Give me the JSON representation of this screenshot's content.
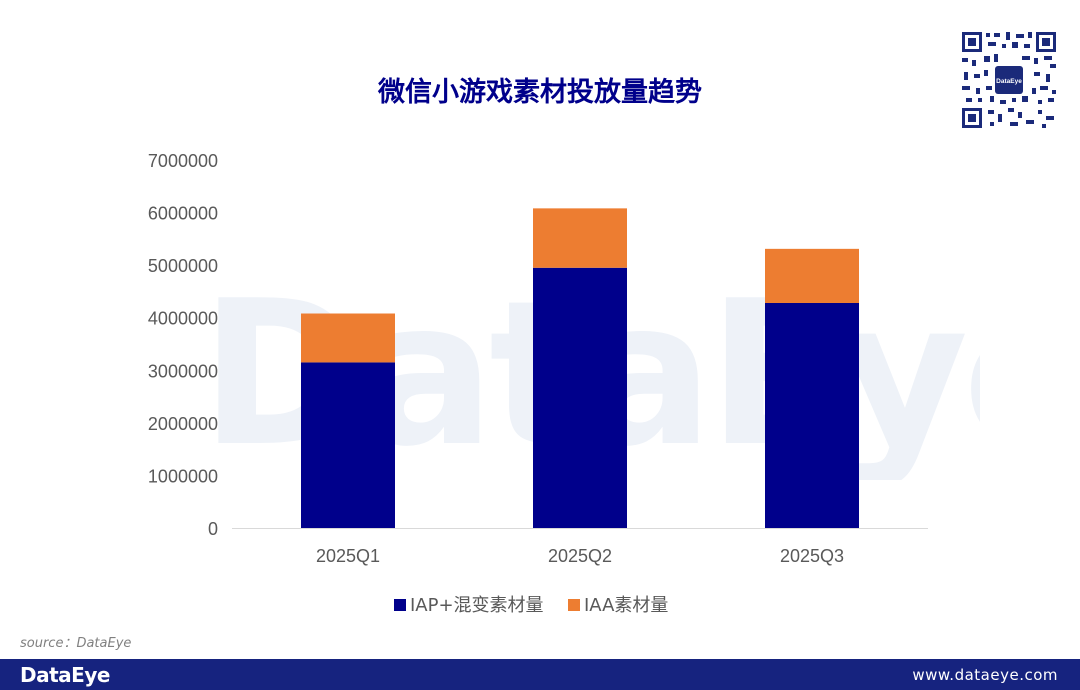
{
  "brand": {
    "primary": "#00008b",
    "accent": "#ed7d31",
    "footer_bg": "#16237f"
  },
  "header": {
    "title": "微信小游戏素材投放量趋势",
    "qr_badge": "DataEye"
  },
  "watermark": {
    "text": "DataEye"
  },
  "chart_data": {
    "type": "bar",
    "stacked": true,
    "title": "微信小游戏素材投放量趋势",
    "categories": [
      "2025Q1",
      "2025Q2",
      "2025Q3"
    ],
    "series": [
      {
        "name": "IAP+混变素材量",
        "color": "#00008b",
        "values": [
          3150000,
          4950000,
          4280000
        ]
      },
      {
        "name": "IAA素材量",
        "color": "#ed7d31",
        "values": [
          930000,
          1130000,
          1030000
        ]
      }
    ],
    "yticks": [
      "0",
      "1000000",
      "2000000",
      "3000000",
      "4000000",
      "5000000",
      "6000000",
      "7000000"
    ],
    "ylim": [
      0,
      7000000
    ],
    "xlabel": "",
    "ylabel": "",
    "grid": false,
    "legend": "bottom"
  },
  "source": {
    "text": "source：DataEye"
  },
  "footer": {
    "logo": "DataEye",
    "url": "www.dataeye.com"
  }
}
